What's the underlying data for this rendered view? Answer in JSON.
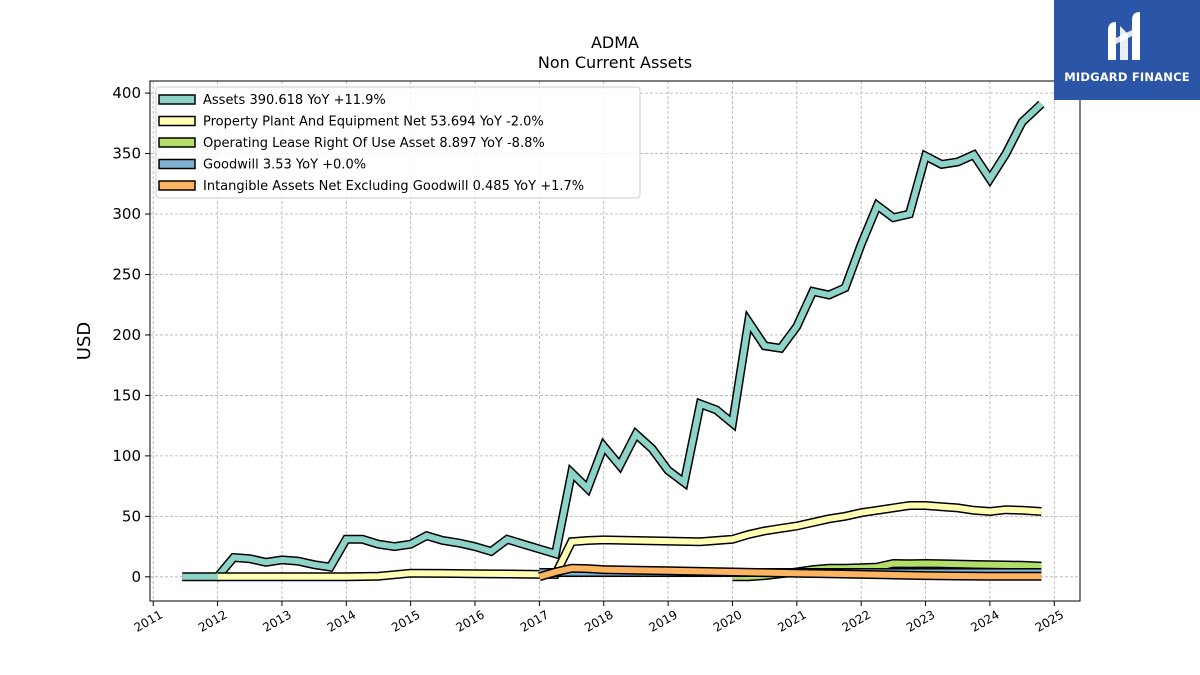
{
  "brand": {
    "name": "MIDGARD FINANCE",
    "logo_icon": "midgard-m-logo-icon",
    "background_color": "#2b56a8"
  },
  "chart_data": {
    "type": "line",
    "title": "ADMA",
    "subtitle": "Non Current  Assets",
    "xlabel": "",
    "ylabel": "USD",
    "xlim": [
      2010.95,
      2025.4
    ],
    "ylim": [
      -20,
      410
    ],
    "grid": true,
    "legend_position": "top-left",
    "x_ticks": [
      "2011",
      "2012",
      "2013",
      "2014",
      "2015",
      "2016",
      "2017",
      "2018",
      "2019",
      "2020",
      "2021",
      "2022",
      "2023",
      "2024",
      "2025"
    ],
    "y_ticks": [
      "0",
      "50",
      "100",
      "150",
      "200",
      "250",
      "300",
      "350",
      "400"
    ],
    "series": [
      {
        "name": "Assets",
        "legend": "Assets  390.618 YoY +11.9%",
        "color": "#8dd3c7",
        "points": [
          [
            2011.45,
            0
          ],
          [
            2012.0,
            0
          ],
          [
            2012.25,
            16
          ],
          [
            2012.5,
            15
          ],
          [
            2012.75,
            12
          ],
          [
            2013.0,
            14
          ],
          [
            2013.25,
            13
          ],
          [
            2013.5,
            10
          ],
          [
            2013.75,
            8
          ],
          [
            2014.0,
            31
          ],
          [
            2014.25,
            31
          ],
          [
            2014.5,
            27
          ],
          [
            2014.75,
            25
          ],
          [
            2015.0,
            27
          ],
          [
            2015.25,
            34
          ],
          [
            2015.5,
            30
          ],
          [
            2015.75,
            28
          ],
          [
            2016.0,
            25
          ],
          [
            2016.25,
            21
          ],
          [
            2016.5,
            31
          ],
          [
            2016.75,
            27
          ],
          [
            2017.0,
            23
          ],
          [
            2017.25,
            19
          ],
          [
            2017.5,
            86
          ],
          [
            2017.75,
            73
          ],
          [
            2018.0,
            108
          ],
          [
            2018.25,
            92
          ],
          [
            2018.5,
            118
          ],
          [
            2018.75,
            106
          ],
          [
            2019.0,
            88
          ],
          [
            2019.25,
            78
          ],
          [
            2019.5,
            143
          ],
          [
            2019.75,
            138
          ],
          [
            2020.0,
            127
          ],
          [
            2020.25,
            211
          ],
          [
            2020.5,
            191
          ],
          [
            2020.75,
            189
          ],
          [
            2021.0,
            207
          ],
          [
            2021.25,
            236
          ],
          [
            2021.5,
            233
          ],
          [
            2021.75,
            239
          ],
          [
            2022.0,
            275
          ],
          [
            2022.25,
            307
          ],
          [
            2022.5,
            297
          ],
          [
            2022.75,
            300
          ],
          [
            2023.0,
            348
          ],
          [
            2023.25,
            341
          ],
          [
            2023.5,
            343
          ],
          [
            2023.75,
            349
          ],
          [
            2024.0,
            329
          ],
          [
            2024.25,
            350
          ],
          [
            2024.5,
            376
          ],
          [
            2024.8,
            391
          ]
        ]
      },
      {
        "name": "Property Plant And Equipment Net",
        "legend": "Property Plant And Equipment Net  53.694 YoY -2.0%",
        "color": "#ffffb3",
        "points": [
          [
            2012.0,
            0
          ],
          [
            2012.5,
            0
          ],
          [
            2013.0,
            0
          ],
          [
            2013.5,
            0
          ],
          [
            2014.0,
            0
          ],
          [
            2014.5,
            0.5
          ],
          [
            2015.0,
            3
          ],
          [
            2015.5,
            2.8
          ],
          [
            2016.0,
            2.5
          ],
          [
            2016.5,
            2.3
          ],
          [
            2017.0,
            2
          ],
          [
            2017.25,
            2
          ],
          [
            2017.5,
            29
          ],
          [
            2017.75,
            30
          ],
          [
            2018.0,
            30.5
          ],
          [
            2018.5,
            30
          ],
          [
            2019.0,
            29.5
          ],
          [
            2019.5,
            29
          ],
          [
            2020.0,
            31
          ],
          [
            2020.25,
            35
          ],
          [
            2020.5,
            38
          ],
          [
            2020.75,
            40
          ],
          [
            2021.0,
            42
          ],
          [
            2021.25,
            45
          ],
          [
            2021.5,
            48
          ],
          [
            2021.75,
            50
          ],
          [
            2022.0,
            53
          ],
          [
            2022.25,
            55
          ],
          [
            2022.5,
            57
          ],
          [
            2022.75,
            59
          ],
          [
            2023.0,
            59
          ],
          [
            2023.25,
            58
          ],
          [
            2023.5,
            57
          ],
          [
            2023.75,
            55
          ],
          [
            2024.0,
            54
          ],
          [
            2024.25,
            55.5
          ],
          [
            2024.5,
            55
          ],
          [
            2024.8,
            54
          ]
        ]
      },
      {
        "name": "Operating Lease Right Of Use Asset",
        "legend": "Operating Lease Right Of Use Asset  8.897 YoY -8.8%",
        "color": "#b3de69",
        "points": [
          [
            2020.0,
            0
          ],
          [
            2020.25,
            0
          ],
          [
            2020.5,
            1
          ],
          [
            2020.75,
            2.5
          ],
          [
            2021.0,
            4
          ],
          [
            2021.25,
            6
          ],
          [
            2021.5,
            7
          ],
          [
            2021.75,
            7
          ],
          [
            2022.0,
            7.5
          ],
          [
            2022.25,
            8
          ],
          [
            2022.5,
            11
          ],
          [
            2022.75,
            10.8
          ],
          [
            2023.0,
            11
          ],
          [
            2023.25,
            10.8
          ],
          [
            2023.5,
            10.5
          ],
          [
            2023.75,
            10.2
          ],
          [
            2024.0,
            10
          ],
          [
            2024.25,
            9.8
          ],
          [
            2024.5,
            9.5
          ],
          [
            2024.8,
            8.9
          ]
        ]
      },
      {
        "name": "Goodwill",
        "legend": "Goodwill  3.53 YoY +0.0%",
        "color": "#80b1d3",
        "points": [
          [
            2017.0,
            3.53
          ],
          [
            2024.8,
            3.53
          ]
        ]
      },
      {
        "name": "Intangible Assets Net Excluding Goodwill",
        "legend": "Intangible Assets Net Excluding Goodwill  0.485 YoY +1.7%",
        "color": "#fdb462",
        "points": [
          [
            2017.0,
            0
          ],
          [
            2017.25,
            4
          ],
          [
            2017.5,
            7
          ],
          [
            2017.75,
            6.8
          ],
          [
            2018.0,
            6
          ],
          [
            2018.5,
            5.5
          ],
          [
            2019.0,
            5
          ],
          [
            2019.5,
            4.5
          ],
          [
            2020.0,
            4
          ],
          [
            2020.5,
            3.5
          ],
          [
            2021.0,
            3
          ],
          [
            2021.5,
            2.5
          ],
          [
            2022.0,
            2
          ],
          [
            2022.5,
            1.5
          ],
          [
            2023.0,
            1
          ],
          [
            2023.5,
            0.7
          ],
          [
            2024.0,
            0.5
          ],
          [
            2024.8,
            0.485
          ]
        ]
      }
    ]
  }
}
